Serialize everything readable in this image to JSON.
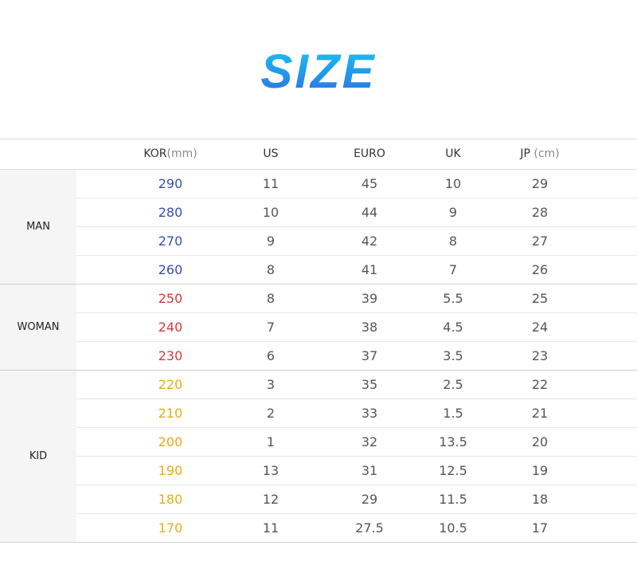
{
  "title": "SIZE",
  "colors": {
    "title_gradient_start": "#18c7f3",
    "title_gradient_end": "#2d6fe0",
    "man": "#3a4db3",
    "woman": "#d8383d",
    "kid": "#e6ad12",
    "label_bg": "#f5f5f5",
    "border": "#dcdcdc"
  },
  "headers": [
    {
      "name": "KOR",
      "unit": "(mm)"
    },
    {
      "name": "US",
      "unit": ""
    },
    {
      "name": "EURO",
      "unit": ""
    },
    {
      "name": "UK",
      "unit": ""
    },
    {
      "name": "JP",
      "unit": " (cm)"
    }
  ],
  "groups": [
    {
      "label": "MAN",
      "color_key": "man",
      "rows": [
        [
          "290",
          "11",
          "45",
          "10",
          "29"
        ],
        [
          "280",
          "10",
          "44",
          "9",
          "28"
        ],
        [
          "270",
          "9",
          "42",
          "8",
          "27"
        ],
        [
          "260",
          "8",
          "41",
          "7",
          "26"
        ]
      ]
    },
    {
      "label": "WOMAN",
      "color_key": "woman",
      "rows": [
        [
          "250",
          "8",
          "39",
          "5.5",
          "25"
        ],
        [
          "240",
          "7",
          "38",
          "4.5",
          "24"
        ],
        [
          "230",
          "6",
          "37",
          "3.5",
          "23"
        ]
      ]
    },
    {
      "label": "KID",
      "color_key": "kid",
      "rows": [
        [
          "220",
          "3",
          "35",
          "2.5",
          "22"
        ],
        [
          "210",
          "2",
          "33",
          "1.5",
          "21"
        ],
        [
          "200",
          "1",
          "32",
          "13.5",
          "20"
        ],
        [
          "190",
          "13",
          "31",
          "12.5",
          "19"
        ],
        [
          "180",
          "12",
          "29",
          "11.5",
          "18"
        ],
        [
          "170",
          "11",
          "27.5",
          "10.5",
          "17"
        ]
      ]
    }
  ]
}
